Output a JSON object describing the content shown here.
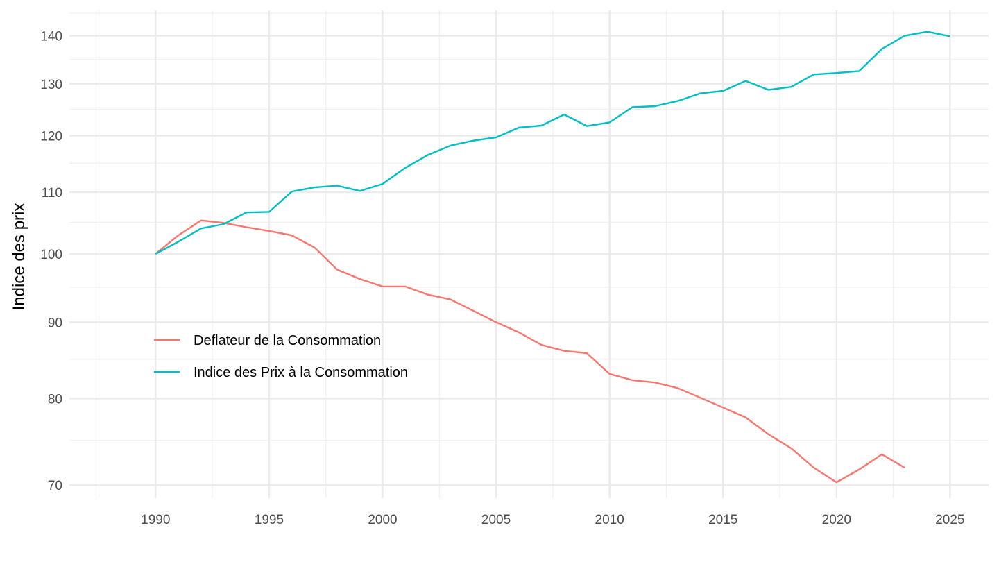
{
  "chart_data": {
    "type": "line",
    "title": "",
    "xlabel": "",
    "ylabel": "Indice des prix",
    "y_scale": "log",
    "xlim": [
      1986.2,
      2026.7
    ],
    "ylim": [
      68.6,
      145.6
    ],
    "x_ticks": [
      1990,
      1995,
      2000,
      2005,
      2010,
      2015,
      2020,
      2025
    ],
    "x_tick_labels": [
      "1990",
      "1995",
      "2000",
      "2005",
      "2010",
      "2015",
      "2020",
      "2025"
    ],
    "x_minor": [
      1987.5,
      1992.5,
      1997.5,
      2002.5,
      2007.5,
      2012.5,
      2017.5,
      2022.5
    ],
    "y_ticks": [
      70,
      80,
      90,
      100,
      110,
      120,
      130,
      140
    ],
    "y_tick_labels": [
      "70",
      "80",
      "90",
      "100",
      "110",
      "120",
      "130",
      "140"
    ],
    "y_minor": [
      75,
      85,
      95,
      105,
      115,
      125,
      135,
      145
    ],
    "grid": true,
    "legend_position": "inside-left",
    "series": [
      {
        "name": "Deflateur de la Consommation",
        "color": "#F8766D",
        "x": [
          1990,
          1991,
          1992,
          1993,
          1994,
          1995,
          1996,
          1997,
          1998,
          1999,
          2000,
          2001,
          2002,
          2003,
          2004,
          2005,
          2006,
          2007,
          2008,
          2009,
          2010,
          2011,
          2012,
          2013,
          2014,
          2015,
          2016,
          2017,
          2018,
          2019,
          2020,
          2021,
          2022,
          2023
        ],
        "values": [
          100.0,
          102.9,
          105.3,
          104.9,
          104.2,
          103.6,
          102.9,
          101.0,
          97.6,
          96.2,
          95.1,
          95.1,
          93.9,
          93.2,
          91.6,
          90.0,
          88.6,
          86.9,
          86.1,
          85.8,
          83.1,
          82.3,
          82.0,
          81.3,
          80.1,
          78.9,
          77.7,
          75.7,
          74.1,
          71.9,
          70.3,
          71.7,
          73.4,
          71.9
        ]
      },
      {
        "name": "Indice des Prix à la Consommation",
        "color": "#00BFC4",
        "x": [
          1990,
          1991,
          1992,
          1993,
          1994,
          1995,
          1996,
          1997,
          1998,
          1999,
          2000,
          2001,
          2002,
          2003,
          2004,
          2005,
          2006,
          2007,
          2008,
          2009,
          2010,
          2011,
          2012,
          2013,
          2014,
          2015,
          2016,
          2017,
          2018,
          2019,
          2020,
          2021,
          2022,
          2023,
          2024,
          2025
        ],
        "values": [
          100.0,
          101.9,
          104.0,
          104.7,
          106.6,
          106.7,
          110.1,
          110.8,
          111.1,
          110.2,
          111.4,
          114.2,
          116.5,
          118.2,
          119.1,
          119.7,
          121.5,
          121.9,
          124.0,
          121.8,
          122.5,
          125.4,
          125.6,
          126.6,
          128.1,
          128.6,
          130.6,
          128.8,
          129.4,
          131.9,
          132.2,
          132.6,
          137.2,
          140.0,
          140.9,
          139.9
        ]
      }
    ]
  }
}
